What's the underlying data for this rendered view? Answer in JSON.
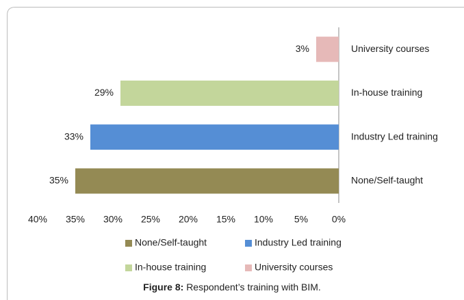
{
  "chart_data": {
    "type": "hbar",
    "categories": [
      "None/Self-taught",
      "Industry Led training",
      "In-house training",
      "University courses"
    ],
    "values": [
      35,
      33,
      29,
      3
    ],
    "value_labels": [
      "35%",
      "33%",
      "29%",
      "3%"
    ],
    "colors": [
      "#948a54",
      "#558ed5",
      "#c3d69b",
      "#e6b9b8"
    ],
    "xlim": [
      40,
      0
    ],
    "xticks": [
      {
        "value": 40,
        "label": "40%"
      },
      {
        "value": 35,
        "label": "35%"
      },
      {
        "value": 30,
        "label": "30%"
      },
      {
        "value": 25,
        "label": "25%"
      },
      {
        "value": 20,
        "label": "20%"
      },
      {
        "value": 15,
        "label": "15%"
      },
      {
        "value": 10,
        "label": "10%"
      },
      {
        "value": 5,
        "label": "5%"
      },
      {
        "value": 0,
        "label": "0%"
      }
    ],
    "legend": true,
    "caption": {
      "label": "Figure 8:",
      "text": "Respondent’s training with BIM."
    }
  }
}
